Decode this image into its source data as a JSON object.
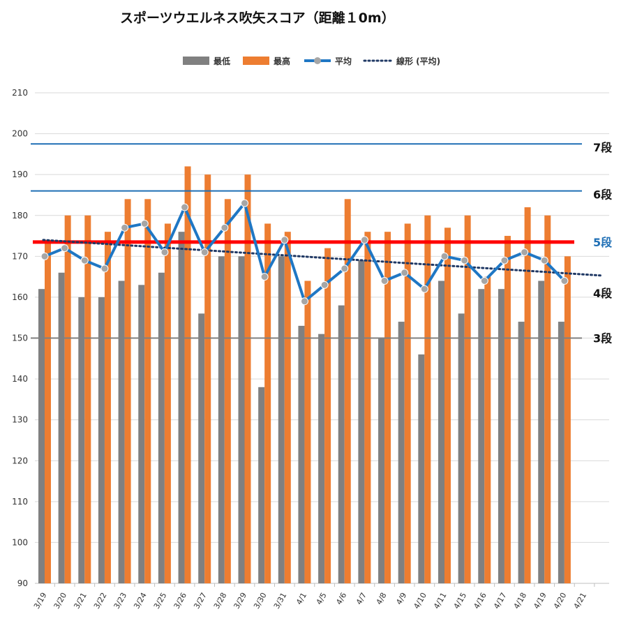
{
  "chart_data": {
    "type": "bar",
    "title": "スポーツウエルネス吹矢スコア（距離１0m）",
    "categories": [
      "3/19",
      "3/20",
      "3/21",
      "3/22",
      "3/23",
      "3/24",
      "3/25",
      "3/26",
      "3/27",
      "3/28",
      "3/29",
      "3/30",
      "3/31",
      "4/1",
      "4/5",
      "4/6",
      "4/7",
      "4/8",
      "4/9",
      "4/10",
      "4/11",
      "4/15",
      "4/16",
      "4/17",
      "4/18",
      "4/19",
      "4/20",
      "4/21"
    ],
    "ylim": [
      90,
      210
    ],
    "yticks": [
      90,
      100,
      110,
      120,
      130,
      140,
      150,
      160,
      170,
      180,
      190,
      200,
      210
    ],
    "grid": true,
    "legend_position": "top",
    "series": [
      {
        "name": "最低",
        "type": "bar",
        "color": "#808080",
        "values": [
          162,
          166,
          160,
          160,
          164,
          163,
          166,
          176,
          156,
          170,
          170,
          138,
          170,
          153,
          151,
          158,
          169,
          150,
          154,
          146,
          164,
          156,
          162,
          162,
          154,
          164,
          154,
          null
        ]
      },
      {
        "name": "最高",
        "type": "bar",
        "color": "#ED7D31",
        "values": [
          174,
          180,
          180,
          176,
          184,
          184,
          178,
          192,
          190,
          184,
          190,
          178,
          176,
          164,
          172,
          184,
          176,
          176,
          178,
          180,
          177,
          180,
          165,
          175,
          182,
          180,
          170,
          null
        ]
      },
      {
        "name": "平均",
        "type": "line",
        "color": "#1F77C4",
        "marker_color": "#A6A6A6",
        "values": [
          170,
          172,
          169,
          167,
          177,
          178,
          171,
          182,
          171,
          177,
          183,
          165,
          174,
          159,
          163,
          167,
          174,
          164,
          166,
          162,
          170,
          169,
          164,
          169,
          171,
          169,
          164,
          null
        ]
      },
      {
        "name": "線形 (平均)",
        "type": "trendline",
        "style": "dotted",
        "color": "#1F3864",
        "start": 174,
        "end": 165.3
      }
    ],
    "reference_lines": [
      {
        "label": "7段",
        "value": 197.5,
        "color": "#1F6FB5",
        "label_color": "#111111"
      },
      {
        "label": "6段",
        "value": 186,
        "color": "#1F6FB5",
        "label_color": "#111111"
      },
      {
        "label": "5段",
        "value": 173.5,
        "color": "#FF0000",
        "label_color": "#1F6FB5"
      },
      {
        "label": "4段",
        "value": null,
        "label_at": 161,
        "label_color": "#111111"
      },
      {
        "label": "3段",
        "value": 150,
        "color": "#808080",
        "label_color": "#111111"
      }
    ]
  }
}
